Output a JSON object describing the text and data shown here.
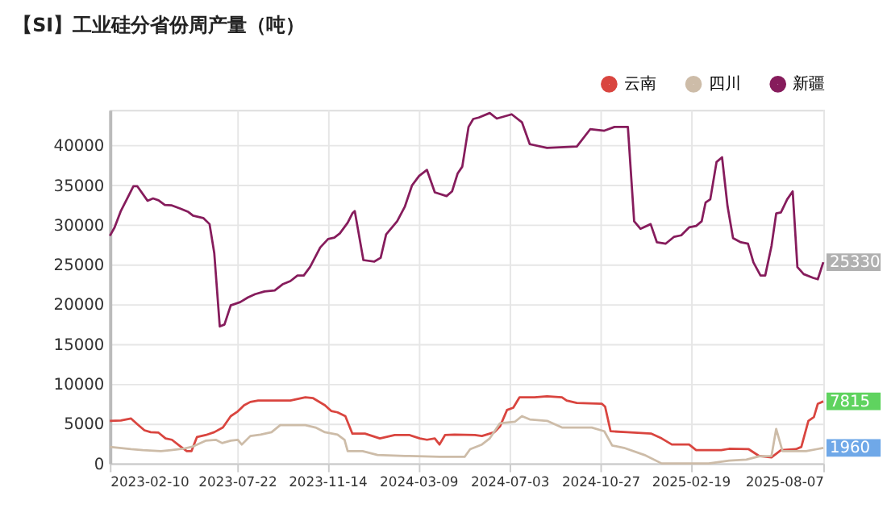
{
  "chart_data": {
    "type": "line",
    "title": "【SI】工业硅分省份周产量（吨）",
    "xlim": [
      "2023-02-10",
      "2025-08-07"
    ],
    "xticks": [
      "2023-02-10",
      "2023-07-22",
      "2023-11-14",
      "2024-03-09",
      "2024-07-03",
      "2024-10-27",
      "2025-02-19",
      "2025-08-07"
    ],
    "ylim": [
      0,
      44500
    ],
    "yticks": [
      0,
      5000,
      10000,
      15000,
      20000,
      25000,
      30000,
      35000,
      40000
    ],
    "grid": true,
    "legend": "top right",
    "line_style": "solid",
    "marker": "none",
    "series": [
      {
        "name": "云南",
        "color": "#d9453f",
        "x": [
          "2023-02-10",
          "2023-02-24",
          "2023-03-09",
          "2023-03-17",
          "2023-03-26",
          "2023-04-03",
          "2023-04-13",
          "2023-04-22",
          "2023-04-30",
          "2023-05-11",
          "2023-05-19",
          "2023-05-25",
          "2023-06-01",
          "2023-06-12",
          "2023-06-23",
          "2023-07-04",
          "2023-07-14",
          "2023-07-23",
          "2023-07-31",
          "2023-08-08",
          "2023-08-18",
          "2023-09-28",
          "2023-10-17",
          "2023-10-27",
          "2023-11-11",
          "2023-11-19",
          "2023-11-27",
          "2023-12-07",
          "2023-12-16",
          "2024-01-01",
          "2024-01-20",
          "2024-02-08",
          "2024-02-27",
          "2024-03-11",
          "2024-03-20",
          "2024-03-30",
          "2024-04-05",
          "2024-04-12",
          "2024-04-24",
          "2024-05-20",
          "2024-05-29",
          "2024-06-14",
          "2024-06-21",
          "2024-06-30",
          "2024-07-08",
          "2024-07-16",
          "2024-08-04",
          "2024-08-20",
          "2024-09-08",
          "2024-09-14",
          "2024-09-27",
          "2024-10-29",
          "2024-11-02",
          "2024-11-09",
          "2024-11-30",
          "2024-12-31",
          "2025-01-13",
          "2025-01-26",
          "2025-02-17",
          "2025-02-26",
          "2025-03-30",
          "2025-04-09",
          "2025-05-04",
          "2025-05-17",
          "2025-06-02",
          "2025-06-14",
          "2025-07-03",
          "2025-07-10",
          "2025-07-19",
          "2025-07-26",
          "2025-07-31",
          "2025-08-07"
        ],
        "values": [
          5360,
          5410,
          5650,
          4940,
          4170,
          3930,
          3870,
          3150,
          2980,
          2140,
          1550,
          1550,
          3330,
          3570,
          3930,
          4520,
          5950,
          6550,
          7320,
          7740,
          7910,
          7910,
          8330,
          8210,
          7320,
          6600,
          6430,
          5950,
          3750,
          3750,
          3150,
          3570,
          3570,
          3150,
          2980,
          3150,
          2380,
          3570,
          3630,
          3570,
          3450,
          3930,
          4640,
          6720,
          7020,
          8330,
          8330,
          8450,
          8330,
          7910,
          7620,
          7500,
          7140,
          4050,
          3930,
          3750,
          3150,
          2380,
          2380,
          1670,
          1670,
          1840,
          1790,
          950,
          770,
          1670,
          1790,
          2080,
          5360,
          5830,
          7500,
          7815
        ],
        "value_labels": [
          null,
          null,
          null,
          null,
          null,
          null,
          null,
          null,
          null,
          null,
          null,
          null,
          null,
          null,
          null,
          null,
          null,
          null,
          null,
          null,
          null,
          null,
          null,
          null,
          null,
          null,
          null,
          null,
          null,
          null,
          null,
          null,
          null,
          null,
          null,
          null,
          null,
          null,
          null,
          null,
          null,
          null,
          null,
          null,
          null,
          null,
          null,
          null,
          null,
          null,
          null,
          null,
          null,
          null,
          null,
          null,
          null,
          null,
          null,
          null,
          null,
          null,
          null,
          null,
          null,
          null,
          null,
          null,
          null,
          null,
          null,
          "7815"
        ]
      },
      {
        "name": "四川",
        "color": "#cdbca8",
        "x": [
          "2023-02-10",
          "2023-03-09",
          "2023-03-24",
          "2023-04-16",
          "2023-04-29",
          "2023-05-14",
          "2023-05-27",
          "2023-06-12",
          "2023-06-25",
          "2023-07-03",
          "2023-07-14",
          "2023-07-23",
          "2023-07-28",
          "2023-08-08",
          "2023-08-21",
          "2023-09-04",
          "2023-09-15",
          "2023-10-17",
          "2023-10-30",
          "2023-11-11",
          "2023-11-27",
          "2023-12-06",
          "2023-12-10",
          "2023-12-29",
          "2024-01-17",
          "2024-02-21",
          "2024-04-05",
          "2024-05-07",
          "2024-05-14",
          "2024-05-29",
          "2024-06-08",
          "2024-06-21",
          "2024-07-10",
          "2024-07-19",
          "2024-07-29",
          "2024-08-20",
          "2024-09-08",
          "2024-10-16",
          "2024-11-01",
          "2024-11-11",
          "2024-11-26",
          "2024-12-22",
          "2025-01-13",
          "2025-03-14",
          "2025-04-09",
          "2025-05-01",
          "2025-05-17",
          "2025-06-02",
          "2025-06-08",
          "2025-06-16",
          "2025-07-16",
          "2025-08-01",
          "2025-08-07"
        ],
        "values": [
          2080,
          1790,
          1670,
          1550,
          1670,
          1840,
          2140,
          2860,
          2980,
          2560,
          2860,
          2980,
          2380,
          3450,
          3630,
          3930,
          4820,
          4820,
          4520,
          3930,
          3630,
          2980,
          1550,
          1550,
          1070,
          950,
          830,
          830,
          1790,
          2380,
          3150,
          5060,
          5240,
          5950,
          5540,
          5360,
          4520,
          4520,
          4050,
          2260,
          1960,
          1070,
          0,
          0,
          360,
          480,
          890,
          950,
          4340,
          1550,
          1550,
          1840,
          1960
        ],
        "value_labels": [
          null,
          null,
          null,
          null,
          null,
          null,
          null,
          null,
          null,
          null,
          null,
          null,
          null,
          null,
          null,
          null,
          null,
          null,
          null,
          null,
          null,
          null,
          null,
          null,
          null,
          null,
          null,
          null,
          null,
          null,
          null,
          null,
          null,
          null,
          null,
          null,
          null,
          null,
          null,
          null,
          null,
          null,
          null,
          null,
          null,
          null,
          null,
          null,
          null,
          null,
          null,
          null,
          "1960"
        ]
      },
      {
        "name": "新疆",
        "color": "#861c5c",
        "x": [
          "2023-02-10",
          "2023-02-16",
          "2023-02-24",
          "2023-03-05",
          "2023-03-12",
          "2023-03-17",
          "2023-03-30",
          "2023-04-06",
          "2023-04-13",
          "2023-04-21",
          "2023-04-30",
          "2023-05-11",
          "2023-05-21",
          "2023-05-27",
          "2023-06-09",
          "2023-06-17",
          "2023-06-23",
          "2023-06-30",
          "2023-07-06",
          "2023-07-14",
          "2023-07-26",
          "2023-08-05",
          "2023-08-14",
          "2023-08-26",
          "2023-09-08",
          "2023-09-18",
          "2023-09-28",
          "2023-10-07",
          "2023-10-15",
          "2023-10-23",
          "2023-11-05",
          "2023-11-15",
          "2023-11-23",
          "2023-11-30",
          "2023-12-10",
          "2023-12-16",
          "2023-12-19",
          "2023-12-30",
          "2024-01-13",
          "2024-01-21",
          "2024-01-28",
          "2024-02-11",
          "2024-02-21",
          "2024-03-01",
          "2024-03-10",
          "2024-03-20",
          "2024-03-30",
          "2024-04-14",
          "2024-04-21",
          "2024-04-28",
          "2024-05-04",
          "2024-05-12",
          "2024-05-18",
          "2024-05-25",
          "2024-06-08",
          "2024-06-17",
          "2024-07-06",
          "2024-07-19",
          "2024-07-29",
          "2024-08-20",
          "2024-09-27",
          "2024-10-14",
          "2024-11-01",
          "2024-11-14",
          "2024-12-01",
          "2024-12-09",
          "2024-12-17",
          "2024-12-30",
          "2025-01-07",
          "2025-01-18",
          "2025-01-29",
          "2025-02-07",
          "2025-02-17",
          "2025-02-26",
          "2025-03-05",
          "2025-03-10",
          "2025-03-16",
          "2025-03-24",
          "2025-03-31",
          "2025-04-07",
          "2025-04-14",
          "2025-04-24",
          "2025-05-03",
          "2025-05-10",
          "2025-05-19",
          "2025-05-25",
          "2025-06-02",
          "2025-06-08",
          "2025-06-14",
          "2025-06-22",
          "2025-06-29",
          "2025-07-05",
          "2025-07-13",
          "2025-07-25",
          "2025-07-31",
          "2025-08-07"
        ],
        "values": [
          28650,
          29700,
          31770,
          33530,
          34880,
          34880,
          33060,
          33350,
          33120,
          32530,
          32470,
          32060,
          31650,
          31180,
          30890,
          30120,
          26480,
          17240,
          17480,
          19890,
          20300,
          20890,
          21300,
          21650,
          21770,
          22540,
          22950,
          23650,
          23650,
          24710,
          27180,
          28240,
          28420,
          28950,
          30300,
          31470,
          31770,
          25590,
          25410,
          25880,
          28830,
          30470,
          32360,
          35000,
          36180,
          36940,
          34120,
          33650,
          34240,
          36470,
          37350,
          42350,
          43350,
          43530,
          44100,
          43400,
          43940,
          42940,
          40180,
          39710,
          39880,
          42060,
          41880,
          42350,
          42350,
          30470,
          29530,
          30120,
          27830,
          27650,
          28530,
          28710,
          29710,
          29890,
          30470,
          32830,
          33240,
          37940,
          38530,
          32360,
          28360,
          27830,
          27650,
          25300,
          23650,
          23650,
          27360,
          31470,
          31590,
          33240,
          34240,
          24710,
          23830,
          23360,
          23180,
          25330
        ],
        "value_labels": [
          null,
          null,
          null,
          null,
          null,
          null,
          null,
          null,
          null,
          null,
          null,
          null,
          null,
          null,
          null,
          null,
          null,
          null,
          null,
          null,
          null,
          null,
          null,
          null,
          null,
          null,
          null,
          null,
          null,
          null,
          null,
          null,
          null,
          null,
          null,
          null,
          null,
          null,
          null,
          null,
          null,
          null,
          null,
          null,
          null,
          null,
          null,
          null,
          null,
          null,
          null,
          null,
          null,
          null,
          null,
          null,
          null,
          null,
          null,
          null,
          null,
          null,
          null,
          null,
          null,
          null,
          null,
          null,
          null,
          null,
          null,
          null,
          null,
          null,
          null,
          null,
          null,
          null,
          null,
          null,
          null,
          null,
          null,
          null,
          null,
          null,
          null,
          null,
          null,
          null,
          null,
          null,
          null,
          null,
          null,
          "25330"
        ]
      }
    ]
  }
}
